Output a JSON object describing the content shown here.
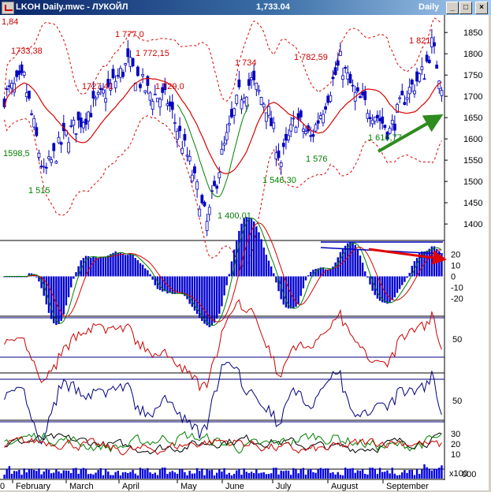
{
  "window": {
    "title": "LKOH Daily.mwc - ЛУКОЙЛ",
    "last_price": "1,733.04",
    "timeframe": "Daily",
    "buttons": {
      "minimize": "_",
      "maximize": "□",
      "close": "×"
    }
  },
  "chart_data": [
    {
      "type": "candlestick",
      "panel": "price",
      "y_ticks": [
        "1850",
        "1800",
        "1750",
        "1700",
        "1650",
        "1600",
        "1550",
        "1500",
        "1450",
        "1400"
      ],
      "ylim": [
        1365,
        1880
      ],
      "overlays": [
        "moving-average-red",
        "moving-average-green",
        "bollinger-bands-red-dotted"
      ],
      "annotations": [
        {
          "text": "1,84",
          "color": "#cc0000"
        },
        {
          "text": "1733,38",
          "color": "#cc0000"
        },
        {
          "text": "1727,41",
          "color": "#cc0000"
        },
        {
          "text": "1 777,0",
          "color": "#cc0000"
        },
        {
          "text": "1 772,15",
          "color": "#cc0000"
        },
        {
          "text": "1 729,0",
          "color": "#cc0000"
        },
        {
          "text": "1 734",
          "color": "#cc0000"
        },
        {
          "text": "1 782,59",
          "color": "#cc0000"
        },
        {
          "text": "1 821",
          "color": "#cc0000"
        },
        {
          "text": "1598,5",
          "color": "#008000"
        },
        {
          "text": "1 515",
          "color": "#008000"
        },
        {
          "text": "1 400,01",
          "color": "#008000"
        },
        {
          "text": "1 546,30",
          "color": "#008000"
        },
        {
          "text": "1 576",
          "color": "#008000"
        },
        {
          "text": "1 616,77",
          "color": "#008000"
        }
      ],
      "trend_arrow": {
        "color": "#2e8b1e",
        "direction": "up"
      }
    },
    {
      "type": "bar",
      "panel": "macd",
      "y_ticks": [
        "20",
        "10",
        "0",
        "-10",
        "-20"
      ],
      "lines": [
        "signal-red",
        "macd-green"
      ],
      "trend_arrow": {
        "color": "#e00000",
        "direction": "down"
      }
    },
    {
      "type": "line",
      "panel": "oscillator-1",
      "y_ticks": [
        "50"
      ],
      "series_color": "#cc0000"
    },
    {
      "type": "line",
      "panel": "oscillator-2",
      "y_ticks": [
        "50"
      ],
      "series_color": "#000080"
    },
    {
      "type": "line",
      "panel": "oscillator-3",
      "y_ticks": [
        "30",
        "20",
        "10"
      ],
      "series_colors": [
        "#000000",
        "#008000",
        "#cc0000"
      ]
    },
    {
      "type": "bar",
      "panel": "volume",
      "y_ticks": [
        "000"
      ],
      "unit_label": "x100"
    }
  ],
  "x_axis": {
    "months": [
      "February",
      "March",
      "April",
      "May",
      "June",
      "July",
      "August",
      "September"
    ],
    "start_label": "0"
  },
  "colors": {
    "candle": "#0000c0",
    "ma_red": "#dd0000",
    "ma_green": "#008000",
    "band": "#dd0000",
    "panel_line": "#000080",
    "volume": "#0000e0"
  }
}
